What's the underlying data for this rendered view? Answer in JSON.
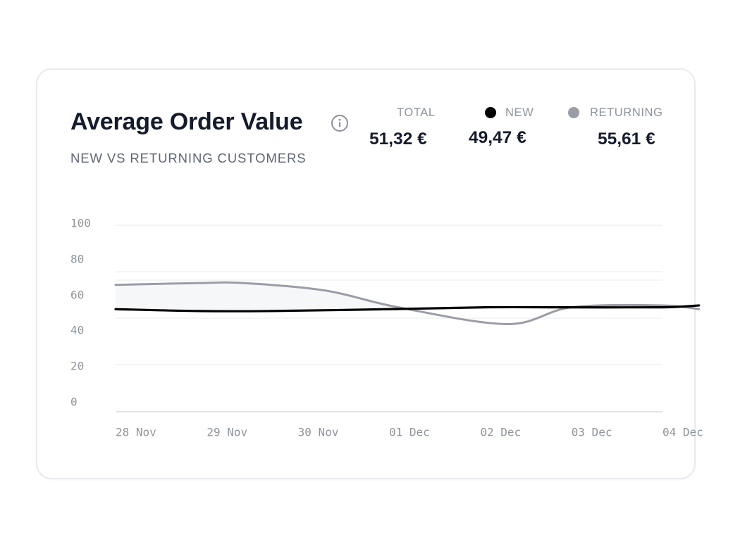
{
  "header": {
    "title": "Average Order Value",
    "subtitle": "NEW VS RETURNING CUSTOMERS"
  },
  "stats": {
    "total": {
      "label": "TOTAL",
      "value": "51,32 €"
    },
    "new": {
      "label": "NEW",
      "value": "49,47 €"
    },
    "returning": {
      "label": "RETURNING",
      "value": "55,61 €"
    }
  },
  "icons": {
    "info": "info-icon"
  },
  "colors": {
    "new": "#000000",
    "returning": "#9a9ca6",
    "grid": "#eeeff1",
    "axis_text": "#8f949c",
    "band": "#eef0f3"
  },
  "chart_data": {
    "type": "line",
    "title": "Average Order Value",
    "subtitle": "NEW VS RETURNING CUSTOMERS",
    "categories": [
      "28 Nov",
      "29 Nov",
      "30 Nov",
      "01 Dec",
      "02 Dec",
      "03 Dec",
      "04 Dec"
    ],
    "x_extended_to": "04 Dec + 0.4",
    "series": [
      {
        "name": "NEW",
        "values": [
          55,
          54,
          54,
          55,
          56,
          56,
          56,
          57
        ],
        "x": [
          0,
          0.9,
          1.7,
          3.0,
          4.05,
          4.9,
          6.0,
          6.4
        ]
      },
      {
        "name": "RETURNING",
        "values": [
          68,
          69,
          69,
          65,
          56,
          47,
          56,
          57,
          55
        ],
        "x": [
          0,
          0.9,
          1.4,
          2.3,
          3.1,
          4.3,
          5.0,
          6.0,
          6.4
        ]
      }
    ],
    "xlabel": "",
    "ylabel": "",
    "yticks": [
      0,
      20,
      40,
      60,
      80,
      100
    ],
    "ylim": [
      0,
      100
    ],
    "grid": true,
    "legend": "top-right"
  }
}
